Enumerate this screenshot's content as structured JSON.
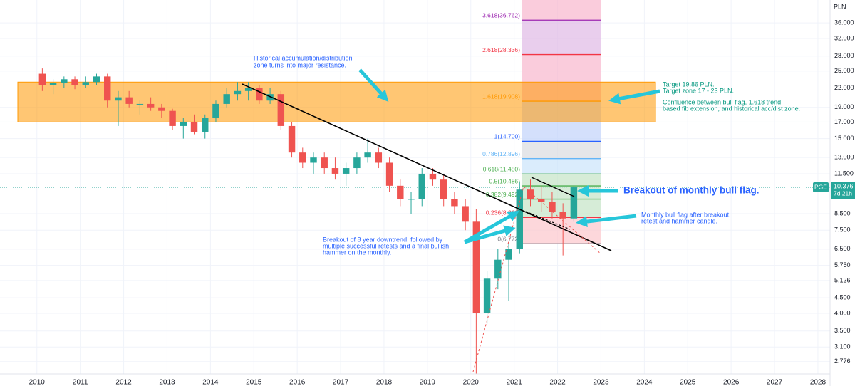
{
  "chart_data": {
    "type": "candlestick",
    "symbol": "PGE",
    "unit": "PLN",
    "countdown": "7d 21h",
    "last_price": 10.376,
    "log_scale": true,
    "grid": true,
    "up_color": "#26a69a",
    "down_color": "#ef5350",
    "xlim": [
      2009.15,
      2028.28
    ],
    "xticks": [
      2010,
      2011,
      2012,
      2013,
      2014,
      2015,
      2016,
      2017,
      2018,
      2019,
      2020,
      2021,
      2022,
      2023,
      2024,
      2025,
      2026,
      2027,
      2028
    ],
    "ylim": [
      2.53,
      42.8
    ],
    "yticks": [
      {
        "value": 36,
        "label": "36.000"
      },
      {
        "value": 32,
        "label": "32.000"
      },
      {
        "value": 28,
        "label": "28.000"
      },
      {
        "value": 25,
        "label": "25.000"
      },
      {
        "value": 22,
        "label": "22.000"
      },
      {
        "value": 19,
        "label": "19.000"
      },
      {
        "value": 17,
        "label": "17.000"
      },
      {
        "value": 15,
        "label": "15.000"
      },
      {
        "value": 13,
        "label": "13.000"
      },
      {
        "value": 11.5,
        "label": "11.500"
      },
      {
        "value": 8.5,
        "label": "8.500"
      },
      {
        "value": 7.5,
        "label": "7.500"
      },
      {
        "value": 6.5,
        "label": "6.500"
      },
      {
        "value": 5.75,
        "label": "5.750"
      },
      5.126,
      {
        "value": 4.5,
        "label": "4.500"
      },
      {
        "value": 4,
        "label": "4.000"
      },
      {
        "value": 3.5,
        "label": "3.500"
      },
      {
        "value": 3.1,
        "label": "3.100"
      },
      2.776
    ],
    "x": [
      2010,
      2010.25,
      2010.5,
      2010.75,
      2011,
      2011.25,
      2011.5,
      2011.75,
      2012,
      2012.25,
      2012.5,
      2012.75,
      2013,
      2013.25,
      2013.5,
      2013.75,
      2014,
      2014.25,
      2014.5,
      2014.75,
      2015,
      2015.25,
      2015.5,
      2015.75,
      2016,
      2016.25,
      2016.5,
      2016.75,
      2017,
      2017.25,
      2017.5,
      2017.75,
      2018,
      2018.25,
      2018.5,
      2018.75,
      2019,
      2019.25,
      2019.5,
      2019.75,
      2020,
      2020.25,
      2020.5,
      2020.75,
      2021,
      2021.25,
      2021.5,
      2021.75,
      2022,
      2022.25
    ],
    "open": [
      24.5,
      22.5,
      22.8,
      23.5,
      22.5,
      23,
      24,
      20,
      20.5,
      19.5,
      19.5,
      19,
      18.5,
      16.5,
      17,
      15.8,
      17.5,
      19.5,
      21,
      21.5,
      22,
      20,
      21,
      16.5,
      13.5,
      12.5,
      13,
      12,
      11.5,
      12,
      13,
      13.5,
      12.5,
      10.5,
      9.5,
      9.5,
      11.5,
      11,
      9.5,
      9,
      8,
      4,
      5.2,
      6,
      6.5,
      10.2,
      9.5,
      9.3,
      8.6,
      8.2
    ],
    "high": [
      25.5,
      23.5,
      24,
      24,
      24,
      24.5,
      24.5,
      21.5,
      21.5,
      20,
      20.5,
      19.5,
      18.8,
      17.5,
      18,
      18,
      20,
      22,
      23,
      23,
      22.5,
      22,
      21.5,
      17,
      14,
      13.5,
      13.5,
      13,
      12.5,
      13.5,
      15,
      14,
      13,
      11,
      10,
      12,
      12,
      11.5,
      10,
      9.5,
      8.8,
      5.5,
      6.5,
      6.8,
      10.8,
      11,
      10.5,
      10,
      9.2,
      10.5
    ],
    "low": [
      21.5,
      21,
      22,
      21.8,
      22,
      22.5,
      19,
      16.5,
      19,
      18,
      18.5,
      17.5,
      16,
      15,
      15.5,
      15,
      17,
      19,
      20,
      20,
      19.5,
      19.5,
      16,
      13,
      12,
      11.5,
      11.5,
      11,
      10.5,
      11.5,
      12.5,
      12,
      10,
      9,
      8.5,
      9,
      10.5,
      9,
      8.5,
      7.5,
      2.5,
      3.7,
      4.8,
      4.4,
      6.3,
      9,
      8.6,
      8.2,
      6.2,
      8
    ],
    "close": [
      22.5,
      22.8,
      23.5,
      22.5,
      23,
      24,
      20,
      20.5,
      19.5,
      19.5,
      19,
      18.5,
      16.5,
      17,
      15.8,
      17.5,
      19.5,
      21,
      21.5,
      22,
      20,
      21,
      16.5,
      13.5,
      12.5,
      13,
      12,
      11.5,
      12,
      13,
      13.5,
      12.5,
      10.5,
      9.5,
      9.5,
      11.5,
      11,
      9.5,
      9,
      8,
      4,
      5.2,
      6,
      6.5,
      10.2,
      9.5,
      9.3,
      8.6,
      8.2,
      10.376
    ],
    "zone": {
      "low": 17,
      "high": 23,
      "color": "#ff9800"
    },
    "fib_levels": [
      {
        "value": 36.762,
        "label": "3.618(36.762)"
      },
      {
        "value": 28.336,
        "label": "2.618(28.336)"
      },
      {
        "value": 19.908,
        "label": "1.618(19.908)"
      },
      {
        "value": 14.7,
        "label": "1(14.700)"
      },
      {
        "value": 12.896,
        "label": "0.786(12.896)"
      },
      {
        "value": 11.48,
        "label": "0.618(11.480)"
      },
      {
        "value": 10.486,
        "label": "0.5(10.486)"
      },
      {
        "value": 9.492,
        "label": "0.382(9.492)"
      },
      {
        "value": 8.262,
        "label": "0.236(8.262)"
      },
      {
        "value": 6.772,
        "label": "0(6.772)"
      }
    ],
    "fib_line_colors": [
      "#9c27b0",
      "#f23645",
      "#ff9800",
      "#2962ff",
      "#64b5f6",
      "#4caf50",
      "#4caf50",
      "#4caf50",
      "#f23645",
      "#787b86"
    ],
    "fib_band_colors": [
      "#f8bbd0",
      "#e1bee7",
      "#f8bbd0",
      "#c5d5fb",
      "#dcdde2",
      "#cde6fb",
      "#c8e6c9",
      "#c8e6c9",
      "#c8e6c9",
      "#fcc9cf"
    ],
    "annotations": [
      {
        "lines": [
          "Historical accumulation/distribution",
          "zone turns into major resistance."
        ]
      },
      {
        "lines": [
          "Target 19.86 PLN.",
          "Target zone 17 - 23 PLN."
        ]
      },
      {
        "lines": [
          "Confluence between bull flag, 1.618 trend",
          "based fib extension, and historical acc/dist zone."
        ]
      },
      {
        "lines": [
          "Breakout of monthly bull flag."
        ]
      },
      {
        "lines": [
          "Monthly bull flag after breakout,",
          "retest and hammer candle."
        ]
      },
      {
        "lines": [
          "Breakout of 8 year downtrend, followed by",
          "multiple successful retests and a final bullish",
          "hammer on the monthly."
        ]
      }
    ]
  }
}
